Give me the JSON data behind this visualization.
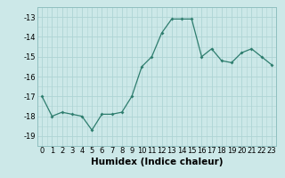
{
  "x": [
    0,
    1,
    2,
    3,
    4,
    5,
    6,
    7,
    8,
    9,
    10,
    11,
    12,
    13,
    14,
    15,
    16,
    17,
    18,
    19,
    20,
    21,
    22,
    23
  ],
  "y": [
    -17.0,
    -18.0,
    -17.8,
    -17.9,
    -18.0,
    -18.7,
    -17.9,
    -17.9,
    -17.8,
    -17.0,
    -15.5,
    -15.0,
    -13.8,
    -13.1,
    -13.1,
    -13.1,
    -15.0,
    -14.6,
    -15.2,
    -15.3,
    -14.8,
    -14.6,
    -15.0,
    -15.4
  ],
  "line_color": "#2e7d6e",
  "marker": "D",
  "marker_size": 2,
  "bg_color": "#cce8e8",
  "grid_color": "#aed4d4",
  "xlabel": "Humidex (Indice chaleur)",
  "ylim": [
    -19.5,
    -12.5
  ],
  "xlim": [
    -0.5,
    23.5
  ],
  "yticks": [
    -19,
    -18,
    -17,
    -16,
    -15,
    -14,
    -13
  ],
  "xticks": [
    0,
    1,
    2,
    3,
    4,
    5,
    6,
    7,
    8,
    9,
    10,
    11,
    12,
    13,
    14,
    15,
    16,
    17,
    18,
    19,
    20,
    21,
    22,
    23
  ],
  "tick_fontsize": 6,
  "xlabel_fontsize": 7.5
}
